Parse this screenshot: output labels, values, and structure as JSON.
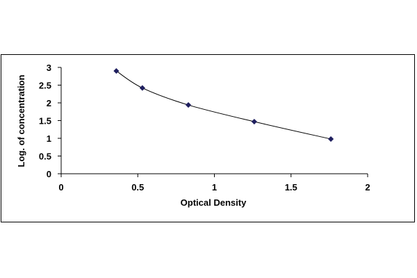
{
  "chart_data": {
    "type": "scatter",
    "title": "",
    "xlabel": "Optical Density",
    "ylabel": "Log. of concentration",
    "xlim": [
      0,
      2
    ],
    "ylim": [
      0,
      3
    ],
    "x_ticks": [
      0,
      0.5,
      1,
      1.5,
      2
    ],
    "x_tick_labels": [
      "0",
      "0.5",
      "1",
      "1.5",
      "2"
    ],
    "y_ticks": [
      0,
      0.5,
      1,
      1.5,
      2,
      2.5,
      3
    ],
    "y_tick_labels": [
      "0",
      "0.5",
      "1",
      "1.5",
      "2",
      "2.5",
      "3"
    ],
    "grid": false,
    "legend": "none",
    "series": [
      {
        "marker": "diamond",
        "color": "#1f1f5f",
        "trendline": "smooth",
        "points": [
          {
            "x": 0.36,
            "y": 2.9
          },
          {
            "x": 0.53,
            "y": 2.42
          },
          {
            "x": 0.83,
            "y": 1.94
          },
          {
            "x": 1.26,
            "y": 1.47
          },
          {
            "x": 1.76,
            "y": 0.98
          }
        ]
      }
    ]
  }
}
